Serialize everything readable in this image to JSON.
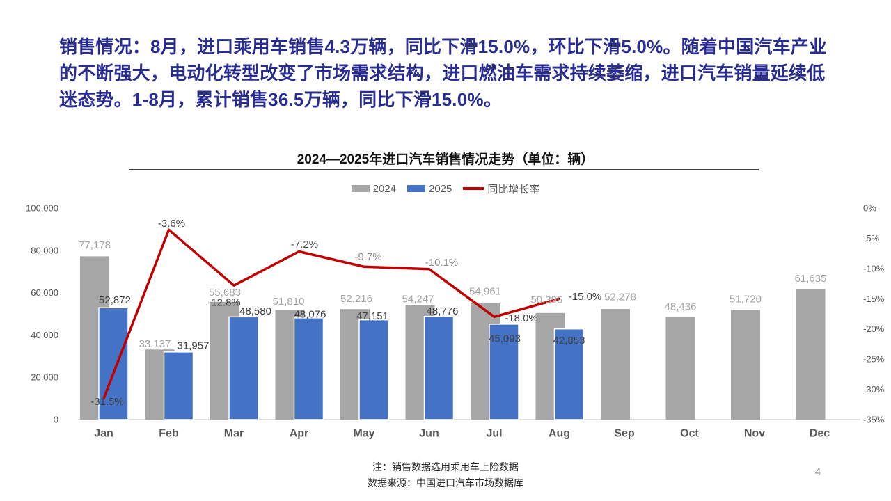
{
  "headline": "销售情况：8月，进口乘用车销售4.3万辆，同比下滑15.0%，环比下滑5.0%。随着中国汽车产业的不断强大，电动化转型改变了市场需求结构，进口燃油车需求持续萎缩，进口汽车销量延续低迷态势。1-8月，累计销售36.5万辆，同比下滑15.0%。",
  "footer": {
    "note1": "注：销售数据选用乘用车上险数据",
    "note2": "数据来源：中国进口汽车市场数据库",
    "page_number": "4"
  },
  "chart_data": {
    "type": "bar",
    "subtype": "grouped-bars-with-line",
    "title": "2024—2025年进口汽车销售情况走势（单位：辆）",
    "categories": [
      "Jan",
      "Feb",
      "Mar",
      "Apr",
      "May",
      "Jun",
      "Jul",
      "Aug",
      "Sep",
      "Oct",
      "Nov",
      "Dec"
    ],
    "series": [
      {
        "name": "2024",
        "type": "bar",
        "color": "#A6A6A6",
        "label_color": "#A3A3A3",
        "values": [
          77178,
          33137,
          55683,
          51810,
          52216,
          54247,
          54961,
          50395,
          52278,
          48436,
          51720,
          61635
        ]
      },
      {
        "name": "2025",
        "type": "bar",
        "color": "#4472C4",
        "label_color": "#404040",
        "values": [
          52872,
          31957,
          48580,
          48076,
          47151,
          48776,
          45093,
          42853,
          null,
          null,
          null,
          null
        ]
      },
      {
        "name": "同比增长率",
        "type": "line",
        "color": "#C00000",
        "label_color": "#404040",
        "values_pct": [
          -31.5,
          -3.6,
          -12.8,
          -7.2,
          -9.7,
          -10.1,
          -18.0,
          -15.0,
          null,
          null,
          null,
          null
        ]
      }
    ],
    "left_axis": {
      "ticks": [
        "100,000",
        "80,000",
        "60,000",
        "40,000",
        "20,000",
        "0"
      ],
      "min": 0,
      "max": 100000
    },
    "right_axis": {
      "ticks": [
        "0%",
        "-5%",
        "-10%",
        "-15%",
        "-20%",
        "-25%",
        "-30%",
        "-35%"
      ],
      "min": -35,
      "max": 0
    },
    "legend": {
      "position": "top",
      "items": [
        "2024",
        "2025",
        "同比增长率"
      ]
    },
    "grid": false
  }
}
